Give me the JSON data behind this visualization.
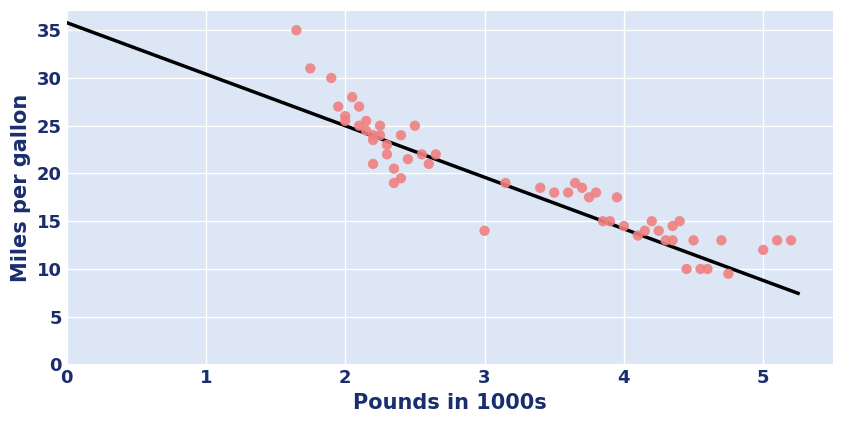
{
  "scatter_x": [
    1.65,
    1.75,
    1.9,
    1.95,
    2.0,
    2.0,
    2.05,
    2.1,
    2.1,
    2.15,
    2.15,
    2.2,
    2.2,
    2.2,
    2.25,
    2.25,
    2.3,
    2.3,
    2.35,
    2.35,
    2.4,
    2.4,
    2.45,
    2.5,
    2.55,
    2.6,
    2.65,
    3.0,
    3.15,
    3.4,
    3.5,
    3.6,
    3.65,
    3.7,
    3.75,
    3.8,
    3.85,
    3.9,
    3.95,
    4.0,
    4.1,
    4.15,
    4.2,
    4.25,
    4.3,
    4.35,
    4.35,
    4.4,
    4.45,
    4.5,
    4.55,
    4.6,
    4.7,
    4.75,
    5.0,
    5.1,
    5.2
  ],
  "scatter_y": [
    35.0,
    31.0,
    30.0,
    27.0,
    26.0,
    25.5,
    28.0,
    27.0,
    25.0,
    25.5,
    24.5,
    24.0,
    23.5,
    21.0,
    25.0,
    24.0,
    23.0,
    22.0,
    20.5,
    19.0,
    24.0,
    19.5,
    21.5,
    25.0,
    22.0,
    21.0,
    22.0,
    14.0,
    19.0,
    18.5,
    18.0,
    18.0,
    19.0,
    18.5,
    17.5,
    18.0,
    15.0,
    15.0,
    17.5,
    14.5,
    13.5,
    14.0,
    15.0,
    14.0,
    13.0,
    14.5,
    13.0,
    15.0,
    10.0,
    13.0,
    10.0,
    10.0,
    13.0,
    9.5,
    12.0,
    13.0,
    13.0
  ],
  "line_x": [
    0.0,
    5.25
  ],
  "line_slope": -5.4,
  "line_intercept": 35.8,
  "scatter_color": "#F08080",
  "line_color": "#000000",
  "plot_bg_color": "#dce6f5",
  "fig_bg_color": "#ffffff",
  "xlabel": "Pounds in 1000s",
  "ylabel": "Miles per gallon",
  "xlim": [
    0,
    5.5
  ],
  "ylim": [
    0,
    37
  ],
  "xticks": [
    0,
    1,
    2,
    3,
    4,
    5
  ],
  "yticks": [
    0,
    5,
    10,
    15,
    20,
    25,
    30,
    35
  ],
  "label_color": "#1a2d6e",
  "tick_color": "#1a2d6e",
  "marker_size": 55,
  "line_width": 2.5,
  "xlabel_fontsize": 15,
  "ylabel_fontsize": 15,
  "tick_fontsize": 13,
  "grid_color": "#ffffff",
  "grid_linewidth": 1.0
}
